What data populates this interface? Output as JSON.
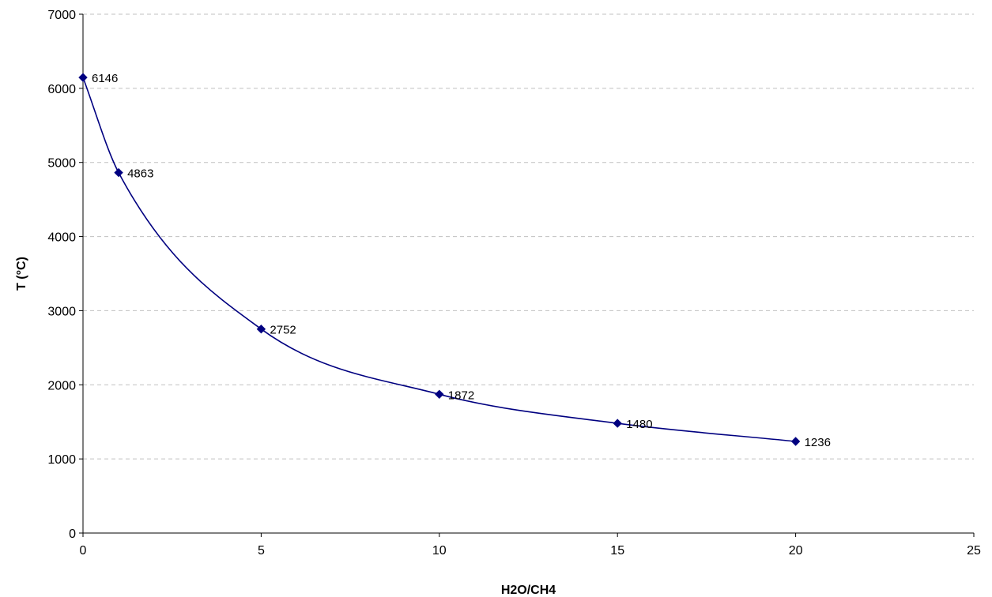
{
  "chart_data": {
    "type": "line",
    "title": "",
    "xlabel": "H2O/CH4",
    "ylabel": "T (°C)",
    "xlim": [
      0,
      25
    ],
    "ylim": [
      0,
      7000
    ],
    "x_ticks": [
      0,
      5,
      10,
      15,
      20,
      25
    ],
    "y_ticks": [
      0,
      1000,
      2000,
      3000,
      4000,
      5000,
      6000,
      7000
    ],
    "grid": "horizontal-dashed",
    "smoothed": true,
    "legend": "none",
    "line_color": "#000080",
    "grid_color": "#c0c0c0",
    "series": [
      {
        "x": [
          0,
          1,
          5,
          10,
          15,
          20
        ],
        "y": [
          6146,
          4863,
          2752,
          1872,
          1480,
          1236
        ],
        "labels": [
          "6146",
          "4863",
          "2752",
          "1872",
          "1480",
          "1236"
        ]
      }
    ]
  }
}
